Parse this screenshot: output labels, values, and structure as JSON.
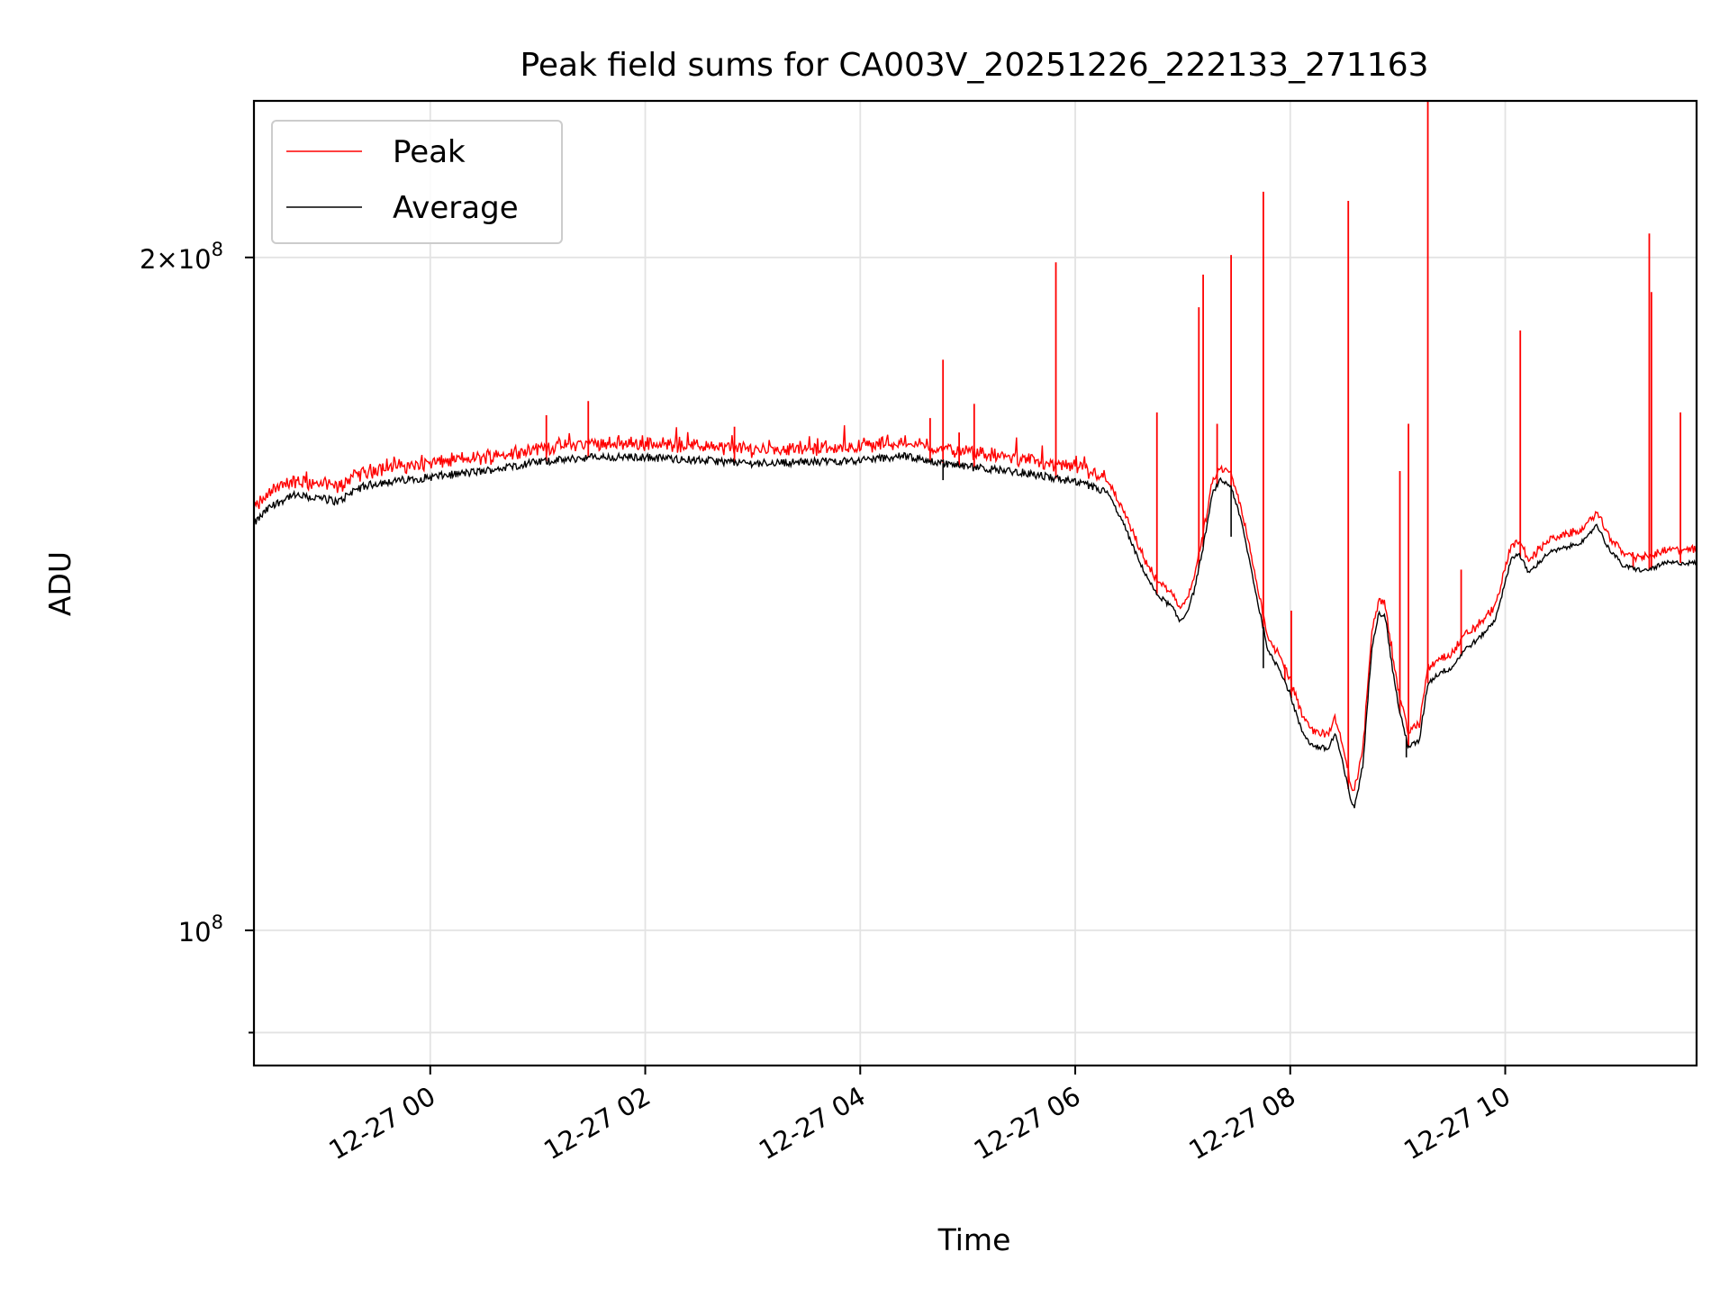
{
  "chart_data": {
    "type": "line",
    "title": "Peak field sums for CA003V_20251226_222133_271163",
    "xlabel": "Time",
    "ylabel": "ADU",
    "yscale": "log",
    "xlim_hours": [
      -1.64,
      11.78
    ],
    "ylim": [
      87000000,
      235000000
    ],
    "grid": true,
    "legend_position": "upper left",
    "x_ticks": [
      {
        "hour": 0,
        "label": "12-27 00"
      },
      {
        "hour": 2,
        "label": "12-27 02"
      },
      {
        "hour": 4,
        "label": "12-27 04"
      },
      {
        "hour": 6,
        "label": "12-27 06"
      },
      {
        "hour": 8,
        "label": "12-27 08"
      },
      {
        "hour": 10,
        "label": "12-27 10"
      }
    ],
    "y_ticks": [
      {
        "value": 200000000,
        "base": "2×10",
        "exp": "8"
      },
      {
        "value": 100000000,
        "base": "10",
        "exp": "8"
      }
    ],
    "y_minor_ticks": [
      90000000
    ],
    "series": [
      {
        "name": "Peak",
        "color": "#ff0000",
        "baseline_offset": 1500000,
        "spikes": [
          {
            "hour": 1.08,
            "value": 170000000
          },
          {
            "hour": 1.47,
            "value": 172500000
          },
          {
            "hour": 2.83,
            "value": 168000000
          },
          {
            "hour": 4.65,
            "value": 169500000
          },
          {
            "hour": 4.77,
            "value": 180000000
          },
          {
            "hour": 4.92,
            "value": 167000000
          },
          {
            "hour": 5.06,
            "value": 172000000
          },
          {
            "hour": 5.82,
            "value": 199000000
          },
          {
            "hour": 6.76,
            "value": 170500000
          },
          {
            "hour": 7.15,
            "value": 190000000
          },
          {
            "hour": 7.19,
            "value": 196500000
          },
          {
            "hour": 7.32,
            "value": 168500000
          },
          {
            "hour": 7.45,
            "value": 200500000
          },
          {
            "hour": 7.75,
            "value": 214000000
          },
          {
            "hour": 7.95,
            "value": 131500000
          },
          {
            "hour": 8.01,
            "value": 139000000
          },
          {
            "hour": 8.54,
            "value": 212000000
          },
          {
            "hour": 9.02,
            "value": 160500000
          },
          {
            "hour": 9.1,
            "value": 168500000
          },
          {
            "hour": 9.28,
            "value": 235000000
          },
          {
            "hour": 9.59,
            "value": 145000000
          },
          {
            "hour": 10.14,
            "value": 185500000
          },
          {
            "hour": 11.19,
            "value": 147000000
          },
          {
            "hour": 11.34,
            "value": 205000000
          },
          {
            "hour": 11.36,
            "value": 193000000
          },
          {
            "hour": 11.63,
            "value": 170500000
          },
          {
            "hour": 11.52,
            "value": 146000000
          }
        ]
      },
      {
        "name": "Average",
        "color": "#000000",
        "profile": [
          [
            -1.64,
            152000000
          ],
          [
            -1.5,
            154500000
          ],
          [
            -1.3,
            156500000
          ],
          [
            -1.0,
            156000000
          ],
          [
            -0.85,
            155500000
          ],
          [
            -0.7,
            157500000
          ],
          [
            -0.5,
            158500000
          ],
          [
            0.0,
            159500000
          ],
          [
            0.5,
            160500000
          ],
          [
            1.0,
            162000000
          ],
          [
            1.5,
            162800000
          ],
          [
            2.0,
            162800000
          ],
          [
            2.5,
            162300000
          ],
          [
            3.0,
            161800000
          ],
          [
            3.5,
            162000000
          ],
          [
            4.0,
            162300000
          ],
          [
            4.4,
            163000000
          ],
          [
            4.7,
            162000000
          ],
          [
            5.0,
            161200000
          ],
          [
            5.5,
            160300000
          ],
          [
            5.9,
            159000000
          ],
          [
            6.1,
            158200000
          ],
          [
            6.3,
            157000000
          ],
          [
            6.45,
            152000000
          ],
          [
            6.6,
            146000000
          ],
          [
            6.75,
            141500000
          ],
          [
            6.9,
            139500000
          ],
          [
            6.97,
            137500000
          ],
          [
            7.03,
            138500000
          ],
          [
            7.1,
            141500000
          ],
          [
            7.18,
            147500000
          ],
          [
            7.28,
            157000000
          ],
          [
            7.35,
            159000000
          ],
          [
            7.45,
            158000000
          ],
          [
            7.55,
            152000000
          ],
          [
            7.7,
            140000000
          ],
          [
            7.8,
            133000000
          ],
          [
            7.9,
            131000000
          ],
          [
            8.0,
            127500000
          ],
          [
            8.1,
            123000000
          ],
          [
            8.2,
            121000000
          ],
          [
            8.35,
            120500000
          ],
          [
            8.42,
            122500000
          ],
          [
            8.5,
            118000000
          ],
          [
            8.56,
            114500000
          ],
          [
            8.6,
            113500000
          ],
          [
            8.68,
            119000000
          ],
          [
            8.76,
            134000000
          ],
          [
            8.82,
            138500000
          ],
          [
            8.88,
            138500000
          ],
          [
            8.95,
            131000000
          ],
          [
            9.02,
            125000000
          ],
          [
            9.1,
            120800000
          ],
          [
            9.2,
            121500000
          ],
          [
            9.28,
            129000000
          ],
          [
            9.4,
            130500000
          ],
          [
            9.5,
            131000000
          ],
          [
            9.62,
            133500000
          ],
          [
            9.75,
            135000000
          ],
          [
            9.9,
            137500000
          ],
          [
            10.0,
            143000000
          ],
          [
            10.05,
            146500000
          ],
          [
            10.12,
            147500000
          ],
          [
            10.22,
            144500000
          ],
          [
            10.4,
            147500000
          ],
          [
            10.6,
            148500000
          ],
          [
            10.75,
            149500000
          ],
          [
            10.85,
            152000000
          ],
          [
            10.95,
            148500000
          ],
          [
            11.1,
            145500000
          ],
          [
            11.3,
            144800000
          ],
          [
            11.5,
            146000000
          ],
          [
            11.78,
            146000000
          ]
        ],
        "dips": [
          {
            "hour": 7.75,
            "value": 131000000
          },
          {
            "hour": 9.08,
            "value": 119500000
          },
          {
            "hour": 7.45,
            "value": 150000000
          },
          {
            "hour": 4.77,
            "value": 159000000
          }
        ]
      }
    ]
  }
}
